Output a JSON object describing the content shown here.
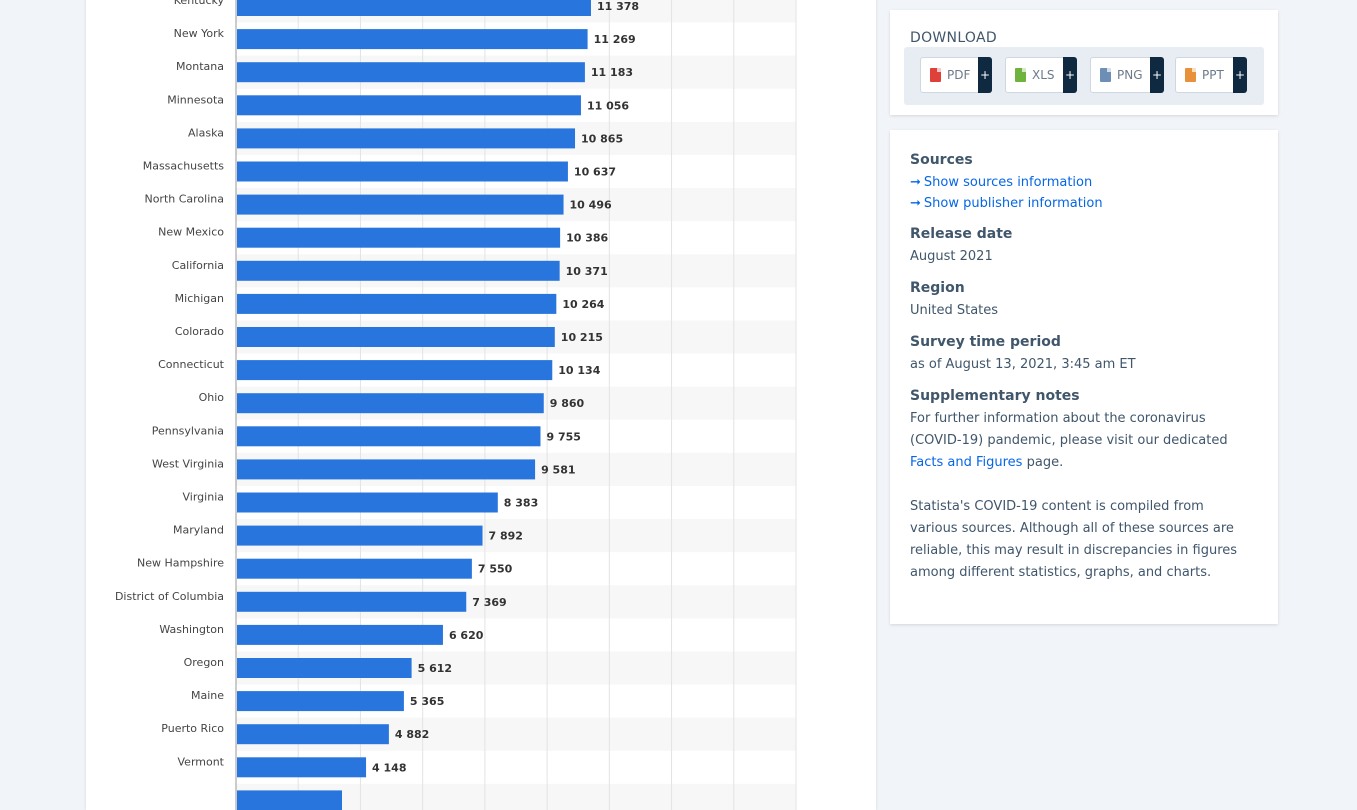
{
  "chart_data": {
    "type": "bar",
    "orientation": "horizontal",
    "title": "",
    "xlabel": "",
    "ylabel": "",
    "bar_color": "#2876dd",
    "xlim": [
      0,
      18000
    ],
    "grid": "vertical",
    "categories": [
      "Kentucky",
      "New York",
      "Montana",
      "Minnesota",
      "Alaska",
      "Massachusetts",
      "North Carolina",
      "New Mexico",
      "California",
      "Michigan",
      "Colorado",
      "Connecticut",
      "Ohio",
      "Pennsylvania",
      "West Virginia",
      "Virginia",
      "Maryland",
      "New Hampshire",
      "District of Columbia",
      "Washington",
      "Oregon",
      "Maine",
      "Puerto Rico",
      "Vermont"
    ],
    "values": [
      11378,
      11269,
      11183,
      11056,
      10865,
      10637,
      10496,
      10386,
      10371,
      10264,
      10215,
      10134,
      9860,
      9755,
      9581,
      8383,
      7892,
      7550,
      7369,
      6620,
      5612,
      5365,
      4882,
      4148
    ],
    "value_labels": [
      "11 378",
      "11 269",
      "11 183",
      "11 056",
      "10 865",
      "10 637",
      "10 496",
      "10 386",
      "10 371",
      "10 264",
      "10 215",
      "10 134",
      "9 860",
      "9 755",
      "9 581",
      "8 383",
      "7 892",
      "7 550",
      "7 369",
      "6 620",
      "5 612",
      "5 365",
      "4 882",
      "4 148"
    ]
  },
  "download": {
    "title": "DOWNLOAD",
    "buttons": [
      {
        "label": "PDF",
        "color": "#e0403a",
        "icon": "pdf-file-icon"
      },
      {
        "label": "XLS",
        "color": "#6fb33f",
        "icon": "xls-file-icon"
      },
      {
        "label": "PNG",
        "color": "#6d8fb5",
        "icon": "png-file-icon"
      },
      {
        "label": "PPT",
        "color": "#e8913a",
        "icon": "ppt-file-icon"
      }
    ],
    "plus": "+"
  },
  "info": {
    "sources_heading": "Sources",
    "show_sources": "Show sources information",
    "show_publisher": "Show publisher information",
    "release_heading": "Release date",
    "release_value": "August 2021",
    "region_heading": "Region",
    "region_value": "United States",
    "survey_heading": "Survey time period",
    "survey_value": "as of August 13, 2021, 3:45 am ET",
    "notes_heading": "Supplementary notes",
    "notes_text_1": "For further information about the coronavirus (COVID-19) pandemic, please visit our dedicated",
    "notes_link": "Facts and Figures",
    "notes_text_2": "page.",
    "notes_text_3": "Statista's COVID-19 content is compiled from various sources. Although all of these sources are reliable, this may result in discrepancies in figures among different statistics, graphs, and charts."
  }
}
